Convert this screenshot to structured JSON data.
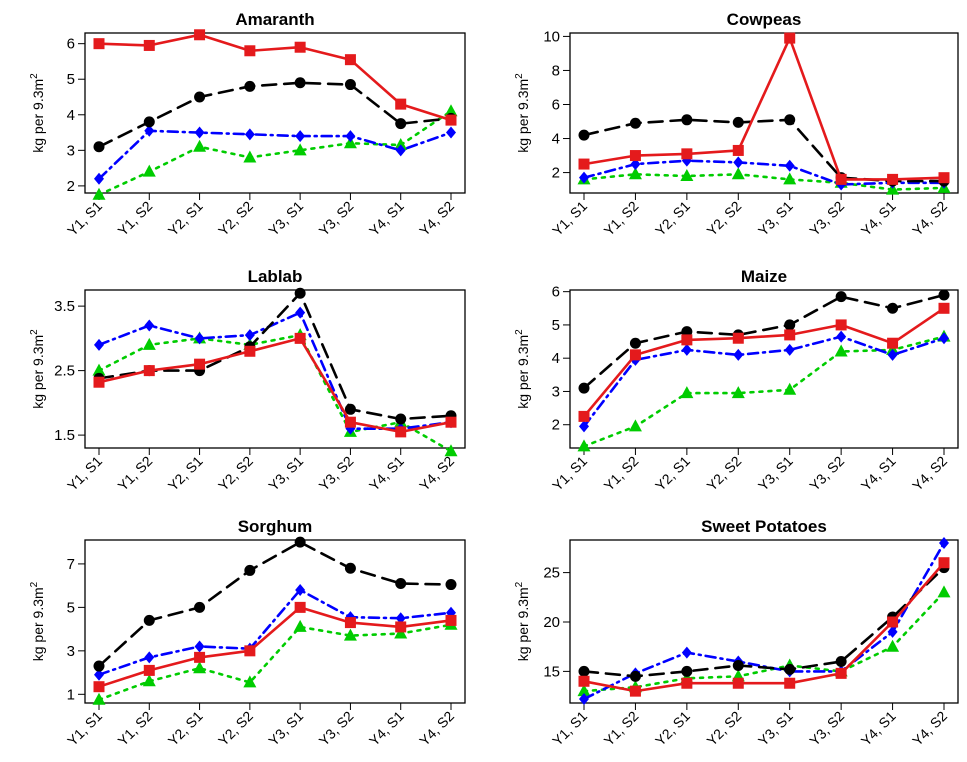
{
  "figure": {
    "categories": [
      "Y1, S1",
      "Y1, S2",
      "Y2, S1",
      "Y2, S2",
      "Y3, S1",
      "Y3, S2",
      "Y4, S1",
      "Y4, S2"
    ],
    "ylabel_main": "kg per 9.3m",
    "ylabel_sup": "2",
    "series_styles": [
      {
        "id": "black",
        "color": "#000000",
        "marker": "circle",
        "dash": "14,8"
      },
      {
        "id": "red",
        "color": "#e41a1c",
        "marker": "square",
        "dash": ""
      },
      {
        "id": "blue",
        "color": "#0000ff",
        "marker": "diamond",
        "dash": "10,5,2,5"
      },
      {
        "id": "green",
        "color": "#00cc00",
        "marker": "triangle",
        "dash": "3,6"
      }
    ]
  },
  "chart_data": [
    {
      "type": "line",
      "title": "Amaranth",
      "ylim": [
        1.8,
        6.3
      ],
      "yticks": [
        2,
        3,
        4,
        5,
        6
      ],
      "series": [
        {
          "name": "black",
          "values": [
            3.1,
            3.8,
            4.5,
            4.8,
            4.9,
            4.85,
            3.75,
            3.9
          ]
        },
        {
          "name": "red",
          "values": [
            6.0,
            5.95,
            6.25,
            5.8,
            5.9,
            5.55,
            4.3,
            3.85
          ]
        },
        {
          "name": "blue",
          "values": [
            2.2,
            3.55,
            3.5,
            3.45,
            3.4,
            3.4,
            3.0,
            3.5
          ]
        },
        {
          "name": "green",
          "values": [
            1.75,
            2.4,
            3.1,
            2.8,
            3.0,
            3.2,
            3.15,
            4.1
          ]
        }
      ]
    },
    {
      "type": "line",
      "title": "Cowpeas",
      "ylim": [
        0.8,
        10.2
      ],
      "yticks": [
        2,
        4,
        6,
        8,
        10
      ],
      "series": [
        {
          "name": "black",
          "values": [
            4.2,
            4.9,
            5.1,
            4.95,
            5.1,
            1.7,
            1.5,
            1.5
          ]
        },
        {
          "name": "red",
          "values": [
            2.5,
            3.0,
            3.1,
            3.3,
            9.9,
            1.6,
            1.6,
            1.7
          ]
        },
        {
          "name": "blue",
          "values": [
            1.7,
            2.5,
            2.7,
            2.6,
            2.4,
            1.3,
            1.4,
            1.4
          ]
        },
        {
          "name": "green",
          "values": [
            1.6,
            1.9,
            1.8,
            1.9,
            1.6,
            1.4,
            1.0,
            1.1
          ]
        }
      ]
    },
    {
      "type": "line",
      "title": "Lablab",
      "ylim": [
        1.3,
        3.75
      ],
      "yticks": [
        1.5,
        2.5,
        3.5
      ],
      "series": [
        {
          "name": "black",
          "values": [
            2.38,
            2.5,
            2.5,
            2.87,
            3.7,
            1.9,
            1.75,
            1.8
          ]
        },
        {
          "name": "red",
          "values": [
            2.32,
            2.5,
            2.6,
            2.8,
            3.0,
            1.7,
            1.55,
            1.7
          ]
        },
        {
          "name": "blue",
          "values": [
            2.9,
            3.2,
            3.0,
            3.05,
            3.4,
            1.6,
            1.6,
            1.7
          ]
        },
        {
          "name": "green",
          "values": [
            2.5,
            2.9,
            3.0,
            2.9,
            3.05,
            1.55,
            1.7,
            1.25
          ]
        }
      ]
    },
    {
      "type": "line",
      "title": "Maize",
      "ylim": [
        1.3,
        6.05
      ],
      "yticks": [
        2,
        3,
        4,
        5,
        6
      ],
      "series": [
        {
          "name": "black",
          "values": [
            3.1,
            4.45,
            4.8,
            4.7,
            5.0,
            5.85,
            5.5,
            5.9
          ]
        },
        {
          "name": "red",
          "values": [
            2.25,
            4.1,
            4.55,
            4.6,
            4.7,
            5.0,
            4.45,
            5.5
          ]
        },
        {
          "name": "blue",
          "values": [
            1.95,
            3.95,
            4.25,
            4.1,
            4.25,
            4.65,
            4.1,
            4.6
          ]
        },
        {
          "name": "green",
          "values": [
            1.35,
            1.95,
            2.95,
            2.95,
            3.05,
            4.2,
            4.25,
            4.65
          ]
        }
      ]
    },
    {
      "type": "line",
      "title": "Sorghum",
      "ylim": [
        0.6,
        8.1
      ],
      "yticks": [
        1,
        3,
        5,
        7
      ],
      "series": [
        {
          "name": "black",
          "values": [
            2.3,
            4.4,
            5.0,
            6.7,
            8.0,
            6.8,
            6.1,
            6.05
          ]
        },
        {
          "name": "red",
          "values": [
            1.35,
            2.1,
            2.7,
            3.0,
            5.0,
            4.3,
            4.1,
            4.4
          ]
        },
        {
          "name": "blue",
          "values": [
            1.9,
            2.7,
            3.2,
            3.1,
            5.8,
            4.55,
            4.5,
            4.75
          ]
        },
        {
          "name": "green",
          "values": [
            0.75,
            1.6,
            2.2,
            1.55,
            4.1,
            3.7,
            3.8,
            4.2
          ]
        }
      ]
    },
    {
      "type": "line",
      "title": "Sweet Potatoes",
      "ylim": [
        11.8,
        28.3
      ],
      "yticks": [
        15,
        20,
        25
      ],
      "series": [
        {
          "name": "black",
          "values": [
            15.0,
            14.5,
            15.0,
            15.6,
            15.2,
            16.0,
            20.5,
            25.5
          ]
        },
        {
          "name": "red",
          "values": [
            14.0,
            13.0,
            13.8,
            13.8,
            13.8,
            14.8,
            20.0,
            26.0
          ]
        },
        {
          "name": "blue",
          "values": [
            12.2,
            14.8,
            16.9,
            16.0,
            15.0,
            15.0,
            19.0,
            28.0
          ]
        },
        {
          "name": "green",
          "values": [
            13.0,
            13.4,
            14.3,
            14.5,
            15.6,
            15.0,
            17.5,
            23.0
          ]
        }
      ]
    }
  ]
}
